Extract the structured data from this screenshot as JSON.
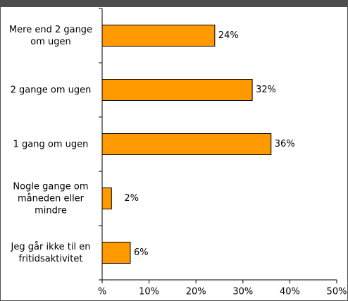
{
  "chart_data": {
    "type": "bar",
    "orientation": "horizontal",
    "categories": [
      "Mere end 2 gange om ugen",
      "2 gange om ugen",
      "1 gang om ugen",
      "Nogle gange om måneden eller mindre",
      "Jeg går ikke til en fritidsaktivitet"
    ],
    "values": [
      24,
      32,
      36,
      2,
      6
    ],
    "value_labels": [
      "24%",
      "32%",
      "36%",
      "2%",
      "6%"
    ],
    "color": "#ff9900",
    "xlim": [
      0,
      50
    ],
    "xticks": [
      {
        "value": 0,
        "label": "%"
      },
      {
        "value": 10,
        "label": "10%"
      },
      {
        "value": 20,
        "label": "20%"
      },
      {
        "value": 30,
        "label": "30%"
      },
      {
        "value": 40,
        "label": "40%"
      },
      {
        "value": 50,
        "label": "50%"
      }
    ],
    "grid": false
  }
}
